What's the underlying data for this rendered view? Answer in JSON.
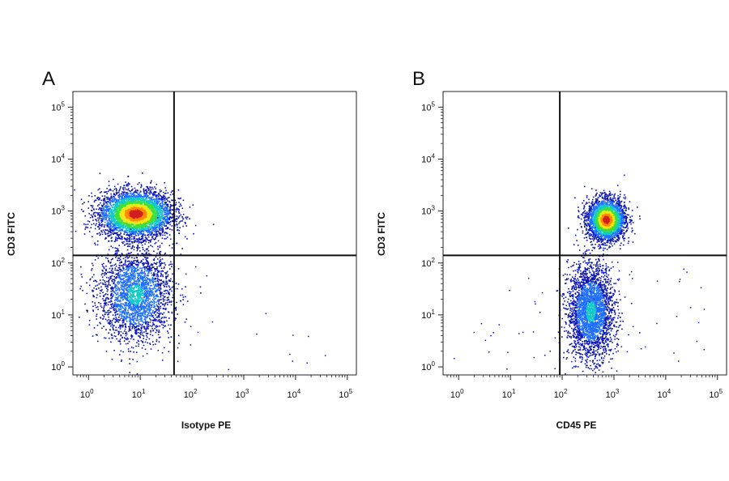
{
  "chart_data": [
    {
      "type": "scatter",
      "panel_label": "A",
      "xlabel": "Isotype PE",
      "ylabel": "CD3 FITC",
      "x_scale": "log",
      "y_scale": "log",
      "xlim": [
        0.5,
        150000
      ],
      "ylim": [
        0.7,
        200000
      ],
      "x_ticks": [
        "10^0",
        "10^1",
        "10^2",
        "10^3",
        "10^4",
        "10^5"
      ],
      "y_ticks": [
        "10^0",
        "10^1",
        "10^2",
        "10^3",
        "10^4",
        "10^5"
      ],
      "gates": {
        "x": 45,
        "y": 140
      },
      "populations": [
        {
          "description": "CD3-high cluster",
          "x_center": 8,
          "y_center": 900,
          "x_spread_log": 0.35,
          "y_spread_log": 0.22,
          "count": 4200,
          "peak_color": "#d21f1f"
        },
        {
          "description": "CD3-low cluster",
          "x_center": 8,
          "y_center": 25,
          "x_spread_log": 0.35,
          "y_spread_log": 0.45,
          "count": 2600,
          "peak_color": "#1a2bd8"
        }
      ],
      "scattered_events": 25,
      "colors": [
        "#0a14b4",
        "#1e6eff",
        "#14c8c8",
        "#3ce03c",
        "#f0e614",
        "#ff8c00",
        "#d21f1f"
      ]
    },
    {
      "type": "scatter",
      "panel_label": "B",
      "xlabel": "CD45 PE",
      "ylabel": "CD3 FITC",
      "x_scale": "log",
      "y_scale": "log",
      "xlim": [
        0.5,
        150000
      ],
      "ylim": [
        0.7,
        200000
      ],
      "x_ticks": [
        "10^0",
        "10^1",
        "10^2",
        "10^3",
        "10^4",
        "10^5"
      ],
      "y_ticks": [
        "10^0",
        "10^1",
        "10^2",
        "10^3",
        "10^4",
        "10^5"
      ],
      "gates": {
        "x": 90,
        "y": 140
      },
      "populations": [
        {
          "description": "CD45+ CD3-high cluster",
          "x_center": 700,
          "y_center": 700,
          "x_spread_log": 0.18,
          "y_spread_log": 0.2,
          "count": 3000,
          "peak_color": "#d21f1f"
        },
        {
          "description": "CD45+ CD3-low cluster",
          "x_center": 350,
          "y_center": 12,
          "x_spread_log": 0.22,
          "y_spread_log": 0.45,
          "count": 2800,
          "peak_color": "#1a2bd8"
        }
      ],
      "scattered_events": 70,
      "colors": [
        "#0a14b4",
        "#1e6eff",
        "#14c8c8",
        "#3ce03c",
        "#f0e614",
        "#ff8c00",
        "#d21f1f"
      ]
    }
  ]
}
